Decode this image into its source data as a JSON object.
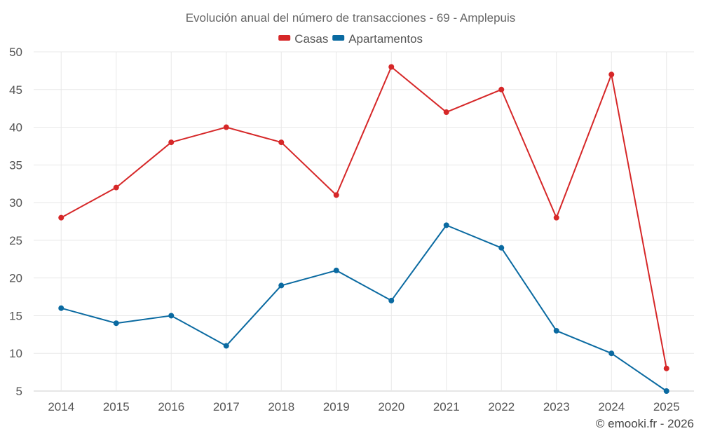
{
  "chart_data": {
    "type": "line",
    "title": "Evolución anual del número de transacciones - 69 - Amplepuis",
    "xlabel": "",
    "ylabel": "",
    "categories": [
      "2014",
      "2015",
      "2016",
      "2017",
      "2018",
      "2019",
      "2020",
      "2021",
      "2022",
      "2023",
      "2024",
      "2025"
    ],
    "ylim": [
      5,
      50
    ],
    "yticks": [
      5,
      10,
      15,
      20,
      25,
      30,
      35,
      40,
      45,
      50
    ],
    "grid": true,
    "legend_position": "top-center",
    "series": [
      {
        "name": "Casas",
        "color": "#d62728",
        "values": [
          28,
          32,
          38,
          40,
          38,
          31,
          48,
          42,
          45,
          28,
          47,
          8
        ]
      },
      {
        "name": "Apartamentos",
        "color": "#0a6aa1",
        "values": [
          16,
          14,
          15,
          11,
          19,
          21,
          17,
          27,
          24,
          13,
          10,
          5
        ]
      }
    ]
  },
  "credit": "© emooki.fr - 2026"
}
